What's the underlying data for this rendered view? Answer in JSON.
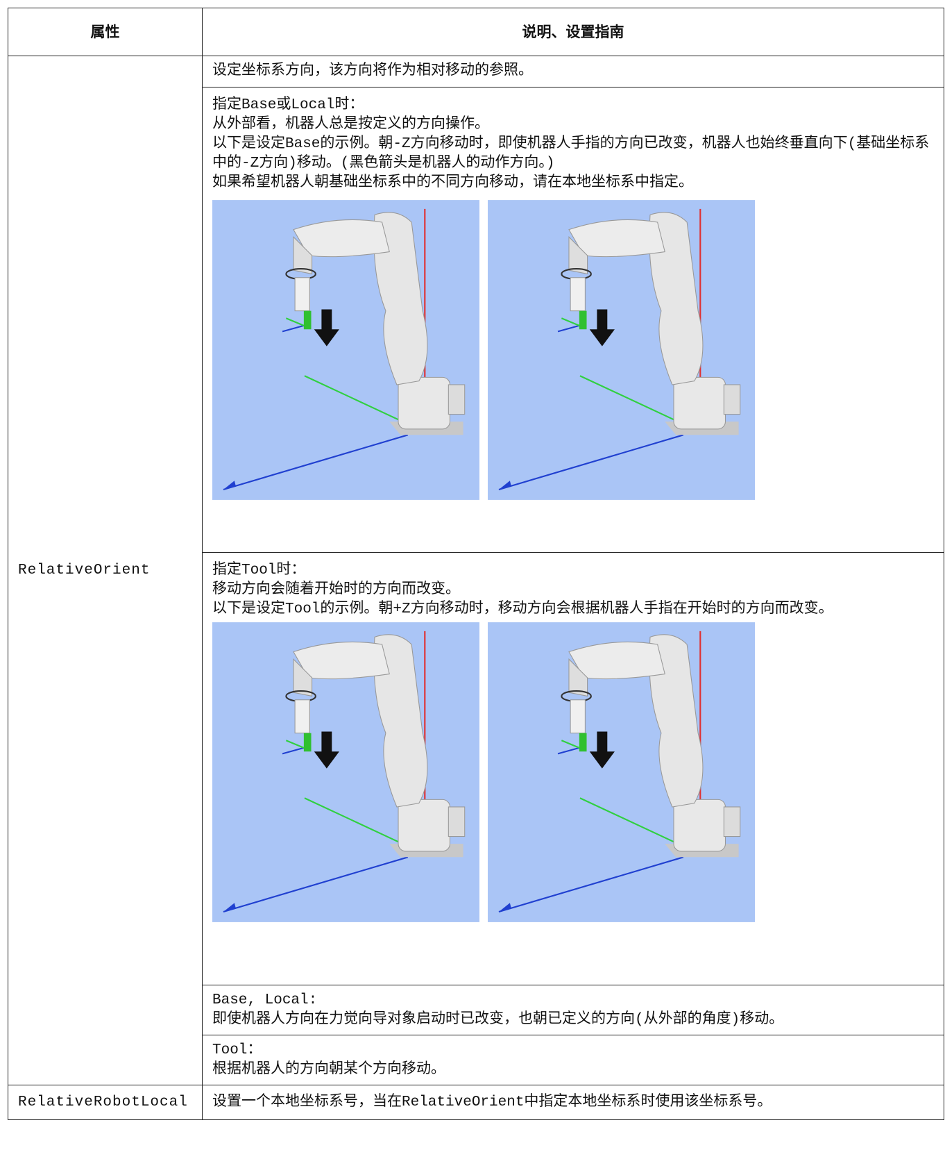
{
  "table": {
    "header": [
      "属性",
      "说明、设置指南"
    ],
    "rows": [
      {
        "property": "RelativeOrient",
        "descriptions": [
          {
            "lines": [
              "设定坐标系方向，该方向将作为相对移动的参照。"
            ]
          },
          {
            "lines": [
              "指定Base或Local时：",
              "从外部看，机器人总是按定义的方向操作。",
              "以下是设定Base的示例。朝-Z方向移动时，即使机器人手指的方向已改变，机器人也始终垂直向下(基础坐标系中的-Z方向)移动。(黑色箭头是机器人的动作方向。)",
              "如果希望机器人朝基础坐标系中的不同方向移动，请在本地坐标系中指定。"
            ]
          },
          {
            "lines": [
              "指定Tool时：",
              "移动方向会随着开始时的方向而改变。",
              "以下是设定Tool的示例。朝+Z方向移动时，移动方向会根据机器人手指在开始时的方向而改变。"
            ]
          },
          {
            "lines": [
              "Base, Local:",
              "即使机器人方向在力觉向导对象启动时已改变，也朝已定义的方向(从外部的角度)移动。"
            ]
          },
          {
            "lines": [
              "Tool：",
              "根据机器人的方向朝某个方向移动。"
            ]
          }
        ]
      },
      {
        "property": "RelativeRobotLocal",
        "descriptions": [
          {
            "lines": [
              "设置一个本地坐标系号，当在RelativeOrient中指定本地坐标系时使用该坐标系号。"
            ]
          }
        ]
      }
    ]
  }
}
